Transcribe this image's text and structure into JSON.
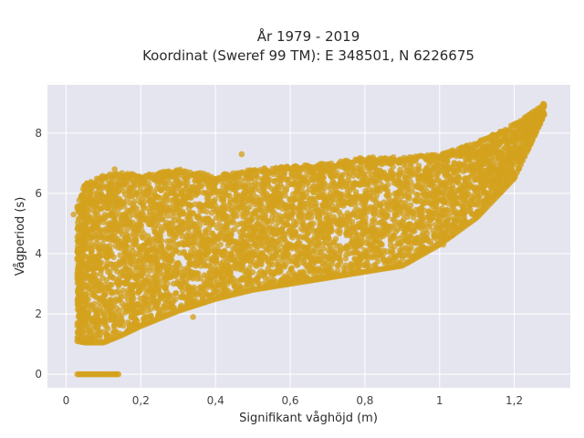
{
  "chart_data": {
    "type": "scatter",
    "title_line1": "År 1979 - 2019",
    "title_line2": "Koordinat (Sweref 99 TM): E 348501, N 6226675",
    "xlabel": "Signifikant våghöjd (m)",
    "ylabel": "Vågperiod (s)",
    "xlim": [
      -0.05,
      1.35
    ],
    "ylim": [
      -0.45,
      9.6
    ],
    "x_ticks": [
      0,
      0.2,
      0.4,
      0.6,
      0.8,
      1,
      1.2
    ],
    "x_tick_labels": [
      "0",
      "0,2",
      "0,4",
      "0,6",
      "0,8",
      "1",
      "1,2"
    ],
    "y_ticks": [
      0,
      2,
      4,
      6,
      8
    ],
    "y_tick_labels": [
      "0",
      "2",
      "4",
      "6",
      "8"
    ],
    "grid": true,
    "background_color": "#e5e5ef",
    "marker_color": "#d4a21d",
    "series": [
      {
        "envelope": {
          "x": [
            0.03,
            0.05,
            0.1,
            0.15,
            0.2,
            0.3,
            0.4,
            0.5,
            0.6,
            0.7,
            0.8,
            0.9,
            1.0,
            1.1,
            1.2,
            1.25,
            1.28
          ],
          "upper_y": [
            5.6,
            6.3,
            6.6,
            6.7,
            6.6,
            6.8,
            6.6,
            6.8,
            6.9,
            7.0,
            7.2,
            7.2,
            7.3,
            7.7,
            8.3,
            8.7,
            9.0
          ],
          "lower_y": [
            1.1,
            1.05,
            1.05,
            1.3,
            1.6,
            2.1,
            2.5,
            2.8,
            3.0,
            3.2,
            3.4,
            3.6,
            4.3,
            5.2,
            6.5,
            7.8,
            8.6
          ]
        },
        "zero_period_band": {
          "x_min": 0.03,
          "x_max": 0.14,
          "y": 0
        },
        "outliers": [
          {
            "x": 0.02,
            "y": 5.3
          },
          {
            "x": 0.04,
            "y": 1.8
          },
          {
            "x": 0.13,
            "y": 6.8
          },
          {
            "x": 0.47,
            "y": 7.3
          },
          {
            "x": 0.55,
            "y": 3.4
          },
          {
            "x": 0.85,
            "y": 4.1
          },
          {
            "x": 0.95,
            "y": 4.2
          },
          {
            "x": 1.01,
            "y": 4.3
          },
          {
            "x": 1.05,
            "y": 7.3
          },
          {
            "x": 1.12,
            "y": 7.1
          },
          {
            "x": 0.34,
            "y": 1.9
          },
          {
            "x": 0.17,
            "y": 1.6
          }
        ]
      }
    ]
  }
}
